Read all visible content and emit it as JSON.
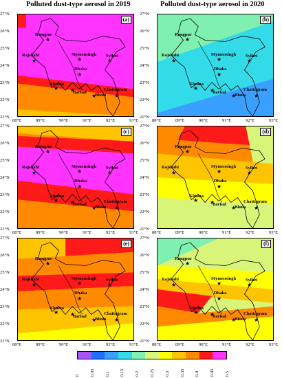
{
  "titles": {
    "left": "Polluted dust-type aerosol in 2019",
    "right": "Polluted dust-type aerosol in 2020"
  },
  "axes": {
    "lat_ticks": [
      "27°N",
      "26°N",
      "25°N",
      "24°N",
      "23°N",
      "22°N",
      "21°N"
    ],
    "lon_ticks": [
      "88°E",
      "89°E",
      "90°E",
      "91°E",
      "92°E",
      "93°E"
    ]
  },
  "panel_labels": [
    "(a)",
    "(b)",
    "(c)",
    "(d)",
    "(e)",
    "(f)"
  ],
  "cities": {
    "rangpur": "Rangpur",
    "rajshahi": "Rajshahi",
    "mymensingh": "Mymensingh",
    "sylhet": "Sylhet",
    "dhaka": "Dhaka",
    "khulna": "Khulna",
    "barisal": "Barisal",
    "bhola": "Bhola",
    "chattogram": "Chattogram"
  },
  "colorbar": {
    "ticks": [
      "0",
      "0.05",
      "0.1",
      "0.15",
      "0.2",
      "0.25",
      "0.3",
      "0.35",
      "0.4",
      "0.45",
      "0.5"
    ],
    "colors": [
      "#a855f7",
      "#1f6fff",
      "#3aa0ff",
      "#33dbe8",
      "#7ff0b0",
      "#d8f57a",
      "#ffff00",
      "#ffc400",
      "#ff8a00",
      "#ff1a1a",
      "#ff33ff"
    ]
  },
  "palette": {
    "magenta": "#ff33ff",
    "red": "#ff1a1a",
    "orange": "#ff8a00",
    "amber": "#ffc400",
    "yellow": "#ffff00",
    "lime": "#d8f57a",
    "mint": "#7ff0b0",
    "cyan": "#33dbe8",
    "sky": "#3aa0ff",
    "blue": "#1f6fff"
  }
}
